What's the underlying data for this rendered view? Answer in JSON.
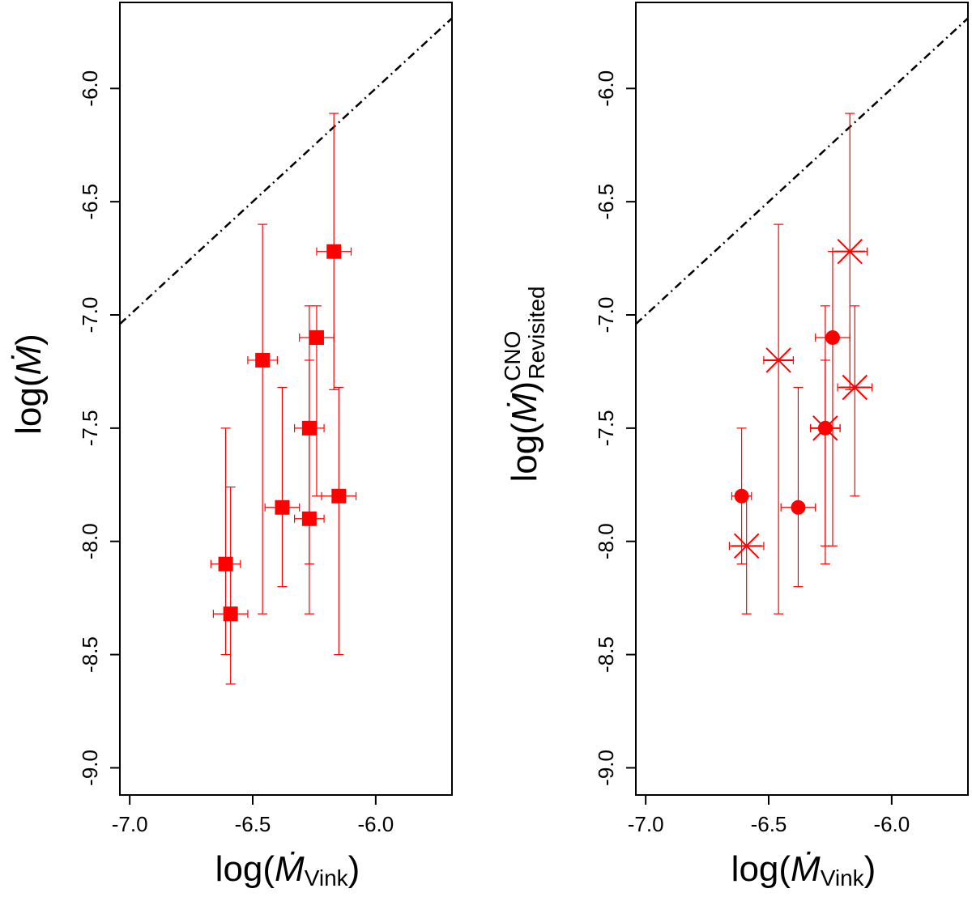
{
  "chart_data": [
    {
      "type": "scatter",
      "xlabel": {
        "base": "log(",
        "symbol": "Ṁ",
        "sub": "Vink",
        "close": ")"
      },
      "ylabel": {
        "base": "log(",
        "symbol": "Ṁ",
        "sup": "",
        "sub": "",
        "close": ")"
      },
      "xlim": [
        -7.04,
        -5.69
      ],
      "ylim": [
        -9.12,
        -5.62
      ],
      "xticks": [
        -7.0,
        -6.5,
        -6.0
      ],
      "xtick_labels": [
        "-7.0",
        "-6.5",
        "-6.0"
      ],
      "yticks": [
        -9.0,
        -8.5,
        -8.0,
        -7.5,
        -7.0,
        -6.5,
        -6.0
      ],
      "ytick_labels": [
        "-9.0",
        "-8.5",
        "-8.0",
        "-7.5",
        "-7.0",
        "-6.5",
        "-6.0"
      ],
      "reference_line": {
        "style": "dash-dot",
        "color": "#000000",
        "slope": 1,
        "intercept": 0
      },
      "series": [
        {
          "name": "squares",
          "marker": "square",
          "color": "#ff0000",
          "points": [
            {
              "x": -6.17,
              "y": -6.72,
              "xerr": 0.07,
              "ylo": -7.33,
              "yhi": -6.11
            },
            {
              "x": -6.46,
              "y": -7.2,
              "xerr": 0.06,
              "ylo": -8.32,
              "yhi": -6.6
            },
            {
              "x": -6.24,
              "y": -7.1,
              "xerr": 0.07,
              "ylo": -7.8,
              "yhi": -6.96
            },
            {
              "x": -6.27,
              "y": -7.5,
              "xerr": 0.06,
              "ylo": -8.1,
              "yhi": -7.2
            },
            {
              "x": -6.38,
              "y": -7.85,
              "xerr": 0.07,
              "ylo": -8.2,
              "yhi": -7.32
            },
            {
              "x": -6.27,
              "y": -7.9,
              "xerr": 0.06,
              "ylo": -8.32,
              "yhi": -6.96
            },
            {
              "x": -6.15,
              "y": -7.8,
              "xerr": 0.07,
              "ylo": -8.5,
              "yhi": -7.32
            },
            {
              "x": -6.61,
              "y": -8.1,
              "xerr": 0.06,
              "ylo": -8.5,
              "yhi": -7.5
            },
            {
              "x": -6.59,
              "y": -8.32,
              "xerr": 0.07,
              "ylo": -8.63,
              "yhi": -7.76
            }
          ]
        }
      ]
    },
    {
      "type": "scatter",
      "xlabel": {
        "base": "log(",
        "symbol": "Ṁ",
        "sub": "Vink",
        "close": ")"
      },
      "ylabel": {
        "base": "log(",
        "symbol": "Ṁ",
        "sup": "CNO",
        "sub": "Revisited",
        "close": ")"
      },
      "xlim": [
        -7.04,
        -5.69
      ],
      "ylim": [
        -9.12,
        -5.62
      ],
      "xticks": [
        -7.0,
        -6.5,
        -6.0
      ],
      "xtick_labels": [
        "-7.0",
        "-6.5",
        "-6.0"
      ],
      "yticks": [
        -9.0,
        -8.5,
        -8.0,
        -7.5,
        -7.0,
        -6.5,
        -6.0
      ],
      "ytick_labels": [
        "-9.0",
        "-8.5",
        "-8.0",
        "-7.5",
        "-7.0",
        "-6.5",
        "-6.0"
      ],
      "reference_line": {
        "style": "dash-dot",
        "color": "#000000",
        "slope": 1,
        "intercept": 0
      },
      "series": [
        {
          "name": "crosses",
          "marker": "asterisk",
          "color": "#ff0000",
          "points": [
            {
              "x": -6.17,
              "y": -6.72,
              "xerr": 0.07,
              "ylo": -7.33,
              "yhi": -6.11
            },
            {
              "x": -6.46,
              "y": -7.2,
              "xerr": 0.06,
              "ylo": -8.32,
              "yhi": -6.6
            },
            {
              "x": -6.15,
              "y": -7.32,
              "xerr": 0.07,
              "ylo": -7.8,
              "yhi": -6.96
            },
            {
              "x": -6.27,
              "y": -7.5,
              "xerr": 0.06,
              "ylo": -8.02,
              "yhi": -7.2
            },
            {
              "x": -6.59,
              "y": -8.02,
              "xerr": 0.07,
              "ylo": -8.32,
              "yhi": -7.8
            }
          ]
        },
        {
          "name": "circles",
          "marker": "circle",
          "color": "#ff0000",
          "points": [
            {
              "x": -6.24,
              "y": -7.1,
              "xerr": 0.07,
              "ylo": -8.02,
              "yhi": -6.72
            },
            {
              "x": -6.27,
              "y": -7.5,
              "xerr": 0.06,
              "ylo": -8.1,
              "yhi": -6.96
            },
            {
              "x": -6.38,
              "y": -7.85,
              "xerr": 0.07,
              "ylo": -8.2,
              "yhi": -7.32
            },
            {
              "x": -6.61,
              "y": -7.8,
              "xerr": 0.04,
              "ylo": -8.1,
              "yhi": -7.5
            }
          ]
        }
      ]
    }
  ]
}
